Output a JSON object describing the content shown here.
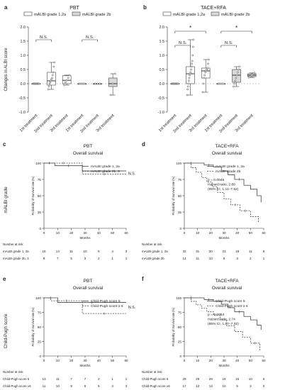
{
  "panels": {
    "a": {
      "letter": "a",
      "title": "PBT",
      "legend": [
        "mALBI grade 1,2a",
        "mALBI grade 2b"
      ],
      "ylabel": "Changes in ALBI score",
      "sig": [
        "N.S.",
        "N.S."
      ]
    },
    "b": {
      "letter": "b",
      "title": "TACE+RFA",
      "legend": [
        "mALBI grade 1,2a",
        "mALBI grade 2b"
      ],
      "sig": [
        "*",
        "N.S.",
        "*",
        "N.S."
      ]
    },
    "c": {
      "letter": "c",
      "title": "PBT",
      "subtitle": "Overall survival",
      "legend": [
        "mALBI grade 1, 2a",
        "mALBI grade 2b, 3"
      ],
      "annotation": "N.S.",
      "row_label": "mALBI grade",
      "number_at_risk_label": "Number at risk",
      "risk_rows": [
        {
          "label": "mALBI grade 1, 2a",
          "values": [
            "16",
            "14",
            "11",
            "10",
            "5",
            "4",
            "3"
          ]
        },
        {
          "label": "mALBI grade 2b, 3",
          "values": [
            "8",
            "7",
            "5",
            "3",
            "2",
            "1",
            "1"
          ]
        }
      ]
    },
    "d": {
      "letter": "d",
      "title": "TACE+RFA",
      "subtitle": "Overall survival",
      "legend": [
        "mALBI grade 1, 2a",
        "mALBI grade 2b"
      ],
      "annotation": [
        "p = 0.0045",
        "Hazard ratio, 2.89",
        "(95% CI, 1.11–7.52)"
      ],
      "number_at_risk_label": "Number at risk",
      "risk_rows": [
        {
          "label": "mALBI grade 1, 2a",
          "values": [
            "32",
            "31",
            "30",
            "23",
            "18",
            "11",
            "5"
          ]
        },
        {
          "label": "mALBI grade 2b",
          "values": [
            "14",
            "11",
            "10",
            "6",
            "3",
            "2",
            "1"
          ]
        }
      ]
    },
    "e": {
      "letter": "e",
      "title": "PBT",
      "subtitle": "Overall survival",
      "legend": [
        "Child-Pugh score 5",
        "Child-Pugh score ≥ 6"
      ],
      "annotation": "N.S.",
      "row_label": "Child-Pugh score",
      "number_at_risk_label": "Number at risk",
      "risk_rows": [
        {
          "label": "Child-Pugh score 5",
          "values": [
            "13",
            "11",
            "7",
            "7",
            "2",
            "1",
            "1"
          ]
        },
        {
          "label": "Child-Pugh score ≥6",
          "values": [
            "11",
            "10",
            "9",
            "6",
            "5",
            "3",
            "3"
          ]
        }
      ]
    },
    "f": {
      "letter": "f",
      "title": "TACE+RFA",
      "subtitle": "Overall survival",
      "legend": [
        "Child-Pugh score 5",
        "Child-Pugh score ≥ 6"
      ],
      "annotation": [
        "p = 0.0054",
        "Hazard ratio, 2.74",
        "(95% CI, 1.07–7.02)"
      ],
      "number_at_risk_label": "Number at risk",
      "risk_rows": [
        {
          "label": "Child-Pugh score 5",
          "values": [
            "29",
            "29",
            "28",
            "19",
            "16",
            "10",
            "6"
          ]
        },
        {
          "label": "Child-Pugh score ≥6",
          "values": [
            "17",
            "13",
            "12",
            "10",
            "5",
            "3",
            "0"
          ]
        }
      ]
    }
  },
  "chart_data": [
    {
      "panel": "a",
      "type": "box",
      "categories": [
        "1st treatment",
        "2nd treatment",
        "3rd treatment",
        "1st treatment",
        "2nd treatment",
        "3rd treatment"
      ],
      "groups": [
        "mALBI grade 1,2a",
        "mALBI grade 1,2a",
        "mALBI grade 1,2a",
        "mALBI grade 2b",
        "mALBI grade 2b",
        "mALBI grade 2b"
      ],
      "ylabel": "Changes in ALBI score",
      "ylim": [
        -1.0,
        2.0
      ],
      "yticks": [
        -1.0,
        -0.5,
        0.0,
        0.5,
        1.0,
        1.5,
        2.0
      ],
      "boxes": [
        {
          "q1": 0,
          "median": 0,
          "q3": 0,
          "min": 0,
          "max": 0
        },
        {
          "q1": -0.05,
          "median": 0.1,
          "q3": 0.4,
          "min": -0.2,
          "max": 0.75
        },
        {
          "q1": 0.0,
          "median": 0.12,
          "q3": 0.28,
          "min": -0.05,
          "max": 0.3
        },
        {
          "q1": 0,
          "median": 0,
          "q3": 0,
          "min": 0,
          "max": 0
        },
        {
          "q1": 0,
          "median": 0,
          "q3": 0,
          "min": 0,
          "max": 0
        },
        {
          "q1": -0.1,
          "median": 0.0,
          "q3": 0.2,
          "min": -0.4,
          "max": 0.35
        }
      ],
      "points": [
        [
          0,
          0,
          0,
          0,
          0,
          0,
          0,
          0,
          0,
          0
        ],
        [
          -0.2,
          -0.1,
          0.0,
          0.05,
          0.1,
          0.15,
          0.2,
          0.3,
          0.4,
          0.6,
          0.75
        ],
        [
          -0.05,
          0.05,
          0.12,
          0.2,
          0.3
        ],
        [
          0,
          0,
          0,
          0,
          0
        ],
        [
          0,
          0,
          0
        ],
        [
          -0.4,
          0.0,
          0.35
        ]
      ]
    },
    {
      "panel": "b",
      "type": "box",
      "categories": [
        "1st treatment",
        "2nd treatment",
        "3rd treatment",
        "1st treatment",
        "2nd treatment",
        "3rd treatment"
      ],
      "groups": [
        "mALBI grade 1,2a",
        "mALBI grade 1,2a",
        "mALBI grade 1,2a",
        "mALBI grade 2b",
        "mALBI grade 2b",
        "mALBI grade 2b"
      ],
      "ylim": [
        -1.0,
        2.0
      ],
      "yticks": [
        -1.0,
        -0.5,
        0.0,
        0.5,
        1.0,
        1.5,
        2.0
      ],
      "boxes": [
        {
          "q1": 0,
          "median": 0,
          "q3": 0,
          "min": 0,
          "max": 0
        },
        {
          "q1": 0.0,
          "median": 0.35,
          "q3": 0.6,
          "min": -0.4,
          "max": 1.55
        },
        {
          "q1": 0.2,
          "median": 0.45,
          "q3": 0.55,
          "min": -0.3,
          "max": 0.85
        },
        {
          "q1": 0,
          "median": 0,
          "q3": 0,
          "min": 0,
          "max": 0
        },
        {
          "q1": 0.05,
          "median": 0.3,
          "q3": 0.5,
          "min": -0.1,
          "max": 0.6
        },
        {
          "q1": 0.25,
          "median": 0.3,
          "q3": 0.35,
          "min": 0.22,
          "max": 0.38
        }
      ],
      "points": [
        [
          0,
          0,
          0,
          0,
          0,
          0,
          0,
          0,
          0,
          0
        ],
        [
          -0.4,
          -0.2,
          -0.1,
          0.0,
          0.1,
          0.2,
          0.3,
          0.35,
          0.4,
          0.5,
          0.6,
          0.7,
          0.8,
          1.0,
          1.3,
          1.55
        ],
        [
          -0.3,
          0.0,
          0.2,
          0.3,
          0.4,
          0.45,
          0.5,
          0.55,
          0.7,
          0.85
        ],
        [
          0,
          0,
          0,
          0,
          0
        ],
        [
          -0.1,
          0.0,
          0.1,
          0.2,
          0.3,
          0.4,
          0.5,
          0.6
        ],
        [
          0.22,
          0.25,
          0.3,
          0.32,
          0.35,
          0.38
        ]
      ]
    },
    {
      "panel": "c",
      "type": "line",
      "xlabel": "Months",
      "ylabel": "Probability of Survival rate (%)",
      "xlim": [
        0,
        60
      ],
      "ylim": [
        0,
        100
      ],
      "xticks": [
        0,
        10,
        20,
        30,
        40,
        50,
        60
      ],
      "yticks": [
        0,
        25,
        50,
        75,
        100
      ],
      "series": [
        {
          "name": "mALBI grade 1, 2a",
          "x": [
            0,
            8,
            28,
            28,
            60
          ],
          "y": [
            100,
            96,
            96,
            88,
            88
          ]
        },
        {
          "name": "mALBI grade 2b, 3",
          "x": [
            0,
            28,
            28,
            60
          ],
          "y": [
            100,
            100,
            83,
            83
          ]
        }
      ]
    },
    {
      "panel": "d",
      "type": "line",
      "xlabel": "Months",
      "ylabel": "Probability of Survival rate (%)",
      "xlim": [
        0,
        60
      ],
      "ylim": [
        0,
        100
      ],
      "xticks": [
        0,
        10,
        20,
        30,
        40,
        50,
        60
      ],
      "yticks": [
        0,
        25,
        50,
        75,
        100
      ],
      "series": [
        {
          "name": "mALBI grade 1, 2a",
          "x": [
            0,
            10,
            15,
            22,
            28,
            33,
            38,
            45,
            50,
            55,
            58
          ],
          "y": [
            100,
            100,
            97,
            94,
            88,
            82,
            75,
            66,
            60,
            50,
            40
          ]
        },
        {
          "name": "mALBI grade 2b",
          "x": [
            0,
            5,
            9,
            13,
            17,
            21,
            25,
            30,
            35,
            42,
            50,
            56
          ],
          "y": [
            100,
            93,
            86,
            78,
            71,
            64,
            55,
            45,
            36,
            27,
            18,
            9
          ]
        }
      ]
    },
    {
      "panel": "e",
      "type": "line",
      "xlabel": "Months",
      "ylabel": "Probability of Survival rate (%)",
      "xlim": [
        0,
        60
      ],
      "ylim": [
        0,
        100
      ],
      "xticks": [
        0,
        10,
        20,
        30,
        40,
        50,
        60
      ],
      "yticks": [
        0,
        25,
        50,
        75,
        100
      ],
      "series": [
        {
          "name": "Child-Pugh score 5",
          "x": [
            0,
            10,
            10,
            60
          ],
          "y": [
            100,
            100,
            92,
            92
          ]
        },
        {
          "name": "Child-Pugh score ≥ 6",
          "x": [
            0,
            5,
            28,
            28,
            60
          ],
          "y": [
            100,
            95,
            95,
            73,
            73
          ]
        }
      ]
    },
    {
      "panel": "f",
      "type": "line",
      "xlabel": "Months",
      "ylabel": "Probability of Survival rate (%)",
      "xlim": [
        0,
        60
      ],
      "ylim": [
        0,
        100
      ],
      "xticks": [
        0,
        10,
        20,
        30,
        40,
        50,
        60
      ],
      "yticks": [
        0,
        25,
        50,
        75,
        100
      ],
      "series": [
        {
          "name": "Child-Pugh score 5",
          "x": [
            0,
            10,
            15,
            22,
            28,
            33,
            38,
            45,
            50,
            55,
            58
          ],
          "y": [
            100,
            100,
            97,
            94,
            89,
            83,
            76,
            68,
            62,
            53,
            45
          ]
        },
        {
          "name": "Child-Pugh score ≥ 6",
          "x": [
            0,
            5,
            9,
            13,
            17,
            22,
            27,
            32,
            38,
            44,
            50,
            57
          ],
          "y": [
            100,
            94,
            88,
            82,
            76,
            70,
            62,
            52,
            42,
            32,
            22,
            10
          ]
        }
      ]
    }
  ]
}
